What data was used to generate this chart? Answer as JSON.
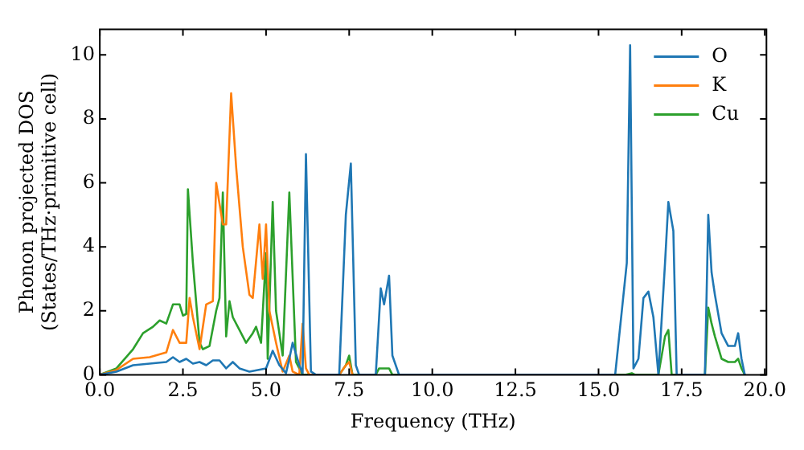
{
  "chart_data": {
    "type": "line",
    "xlabel": "Frequency (THz)",
    "ylabel": "Phonon projected DOS\n(States/THz·primitive cell)",
    "xlim": [
      0,
      20.05
    ],
    "xticks": [
      {
        "value": 0,
        "label": "0.0"
      },
      {
        "value": 2.5,
        "label": "2.5"
      },
      {
        "value": 5,
        "label": "5.0"
      },
      {
        "value": 7.5,
        "label": "7.5"
      },
      {
        "value": 10,
        "label": "10.0"
      },
      {
        "value": 12.5,
        "label": "12.5"
      },
      {
        "value": 15,
        "label": "15.0"
      },
      {
        "value": 17.5,
        "label": "17.5"
      },
      {
        "value": 20,
        "label": "20.0"
      }
    ],
    "ylim": [
      0,
      10.8
    ],
    "yticks": [
      0,
      2,
      4,
      6,
      8,
      10
    ],
    "grid": false,
    "legend": "top right",
    "marker": "none",
    "line_style": "solid",
    "series": [
      {
        "name": "O",
        "color": "#1f77b4",
        "x": [
          0,
          0.5,
          1,
          1.5,
          2,
          2.2,
          2.4,
          2.6,
          2.8,
          3,
          3.2,
          3.4,
          3.6,
          3.8,
          4,
          4.2,
          4.5,
          5,
          5.2,
          5.4,
          5.6,
          5.7,
          5.8,
          6,
          6.1,
          6.2,
          6.35,
          6.5,
          7.2,
          7.4,
          7.55,
          7.7,
          7.8,
          8.3,
          8.45,
          8.55,
          8.7,
          8.8,
          9,
          15.5,
          15.7,
          15.85,
          15.95,
          16.05,
          16.2,
          16.35,
          16.5,
          16.65,
          16.8,
          17,
          17.1,
          17.25,
          17.35,
          18.2,
          18.3,
          18.4,
          18.5,
          18.7,
          18.9,
          19.1,
          19.2,
          19.3,
          19.4
        ],
        "values": [
          0,
          0.1,
          0.3,
          0.35,
          0.4,
          0.55,
          0.4,
          0.5,
          0.35,
          0.4,
          0.3,
          0.45,
          0.45,
          0.2,
          0.4,
          0.2,
          0.1,
          0.2,
          0.75,
          0.3,
          0.05,
          0.5,
          1,
          0.3,
          0.05,
          6.9,
          0.1,
          0,
          0,
          5,
          6.6,
          0.3,
          0,
          0,
          2.7,
          2.2,
          3.1,
          0.6,
          0,
          0,
          2,
          3.5,
          10.3,
          0.2,
          0.5,
          2.4,
          2.6,
          1.8,
          0,
          3.5,
          5.4,
          4.5,
          0,
          0,
          5,
          3.2,
          2.5,
          1.3,
          0.9,
          0.9,
          1.3,
          0.5,
          0
        ]
      },
      {
        "name": "K",
        "color": "#ff7f0e",
        "x": [
          0,
          0.5,
          1,
          1.5,
          2,
          2.2,
          2.4,
          2.6,
          2.7,
          2.8,
          3,
          3.2,
          3.4,
          3.5,
          3.7,
          3.8,
          3.95,
          4.1,
          4.3,
          4.5,
          4.6,
          4.8,
          4.9,
          5,
          5.1,
          5.3,
          5.5,
          5.7,
          5.8,
          6,
          6.1,
          6.2,
          6.3,
          7.2,
          7.4,
          7.5,
          7.6
        ],
        "values": [
          0,
          0.15,
          0.5,
          0.55,
          0.7,
          1.4,
          1,
          1,
          2.4,
          1.8,
          0.8,
          2.2,
          2.3,
          6,
          4.7,
          4.7,
          8.8,
          6.5,
          4,
          2.5,
          2.4,
          4.7,
          3,
          4.7,
          2,
          1,
          0.1,
          0.6,
          0.1,
          0,
          1.6,
          0.2,
          0,
          0,
          0.3,
          0.4,
          0
        ]
      },
      {
        "name": "Cu",
        "color": "#2ca02c",
        "x": [
          0,
          0.5,
          1,
          1.3,
          1.6,
          1.8,
          2,
          2.2,
          2.4,
          2.5,
          2.6,
          2.65,
          2.8,
          3,
          3.1,
          3.3,
          3.5,
          3.6,
          3.7,
          3.8,
          3.9,
          4,
          4.2,
          4.4,
          4.6,
          4.7,
          4.85,
          5,
          5.05,
          5.2,
          5.3,
          5.5,
          5.7,
          5.9,
          6,
          6.1,
          7.2,
          7.4,
          7.5,
          7.6,
          8.3,
          8.4,
          8.7,
          8.8,
          15.8,
          16,
          16.1,
          16.8,
          17,
          17.1,
          17.2,
          18.2,
          18.3,
          18.4,
          18.5,
          18.7,
          18.9,
          19.1,
          19.2,
          19.3,
          19.4
        ],
        "values": [
          0,
          0.2,
          0.8,
          1.3,
          1.5,
          1.7,
          1.6,
          2.2,
          2.2,
          1.85,
          1.9,
          5.8,
          3.5,
          1,
          0.8,
          0.9,
          2,
          2.4,
          5.7,
          1.2,
          2.3,
          1.8,
          1.4,
          1,
          1.3,
          1.5,
          1,
          3.8,
          0.5,
          5.4,
          2,
          0.6,
          5.7,
          0.4,
          0.2,
          0,
          0,
          0.3,
          0.6,
          0,
          0,
          0.2,
          0.2,
          0,
          0,
          0.05,
          0,
          0,
          1.2,
          1.4,
          0,
          0,
          2.1,
          1.6,
          1.2,
          0.5,
          0.4,
          0.4,
          0.5,
          0.2,
          0
        ]
      }
    ]
  }
}
